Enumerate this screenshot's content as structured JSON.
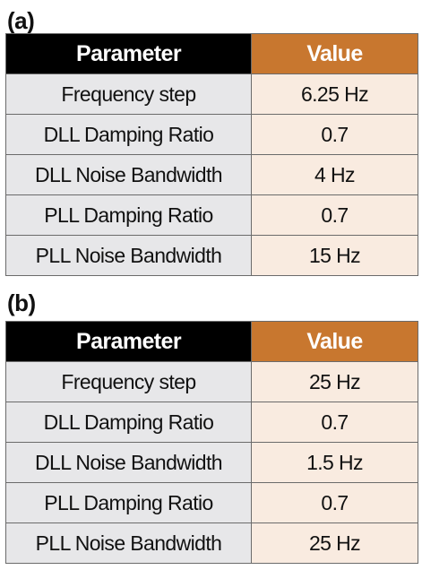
{
  "colors": {
    "header_param_bg": "#000000",
    "header_value_bg": "#c8772f",
    "param_cell_bg": "#e7e7e9",
    "value_cell_bg": "#f9ebe0"
  },
  "tables": [
    {
      "label": "(a)",
      "headers": {
        "param": "Parameter",
        "value": "Value"
      },
      "rows": [
        {
          "param": "Frequency step",
          "value": "6.25 Hz"
        },
        {
          "param": "DLL Damping Ratio",
          "value": "0.7"
        },
        {
          "param": "DLL Noise Bandwidth",
          "value": "4 Hz"
        },
        {
          "param": "PLL Damping Ratio",
          "value": "0.7"
        },
        {
          "param": "PLL Noise Bandwidth",
          "value": "15 Hz"
        }
      ]
    },
    {
      "label": "(b)",
      "headers": {
        "param": "Parameter",
        "value": "Value"
      },
      "rows": [
        {
          "param": "Frequency step",
          "value": "25 Hz"
        },
        {
          "param": "DLL Damping Ratio",
          "value": "0.7"
        },
        {
          "param": "DLL Noise Bandwidth",
          "value": "1.5 Hz"
        },
        {
          "param": "PLL Damping Ratio",
          "value": "0.7"
        },
        {
          "param": "PLL Noise Bandwidth",
          "value": "25 Hz"
        }
      ]
    }
  ]
}
